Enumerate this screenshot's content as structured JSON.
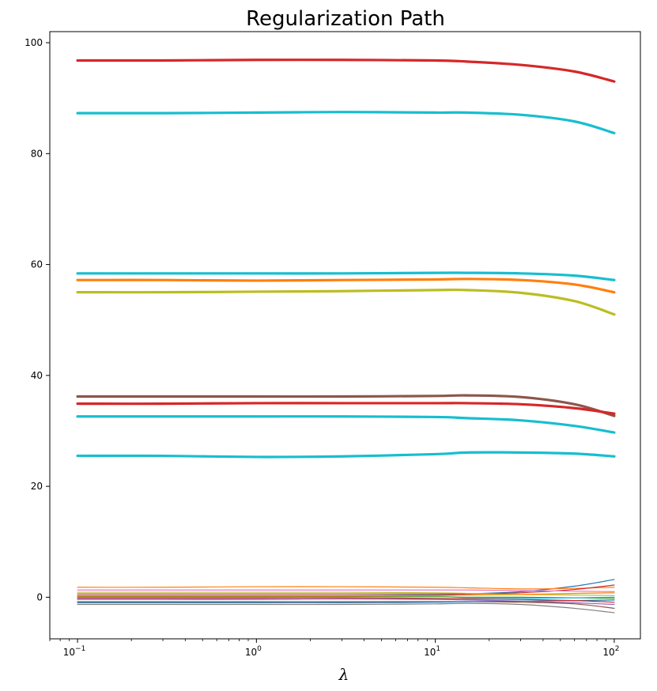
{
  "chart_data": {
    "type": "line",
    "title": "Regularization Path",
    "xlabel": "λ",
    "ylabel": "",
    "xscale": "log",
    "xlim": [
      0.07,
      140
    ],
    "ylim": [
      -7.5,
      102
    ],
    "grid": false,
    "legend": "none",
    "x_ticks": [
      {
        "value": 0.1,
        "base": "10",
        "exp": "−1"
      },
      {
        "value": 1,
        "base": "10",
        "exp": "0"
      },
      {
        "value": 10,
        "base": "10",
        "exp": "1"
      },
      {
        "value": 100,
        "base": "10",
        "exp": "2"
      }
    ],
    "y_ticks": [
      0,
      20,
      40,
      60,
      80,
      100
    ],
    "x": [
      0.1,
      0.3,
      1,
      3,
      10,
      15,
      30,
      60,
      100
    ],
    "series": [
      {
        "color": "#d62728",
        "width": 3.2,
        "values": [
          96.8,
          96.8,
          96.9,
          96.9,
          96.8,
          96.6,
          96.0,
          94.8,
          93.0
        ]
      },
      {
        "color": "#17becf",
        "width": 3.2,
        "values": [
          87.3,
          87.3,
          87.4,
          87.5,
          87.4,
          87.4,
          87.0,
          85.8,
          83.7
        ]
      },
      {
        "color": "#17becf",
        "width": 3.2,
        "values": [
          58.4,
          58.4,
          58.4,
          58.4,
          58.5,
          58.5,
          58.4,
          58.0,
          57.2
        ]
      },
      {
        "color": "#ff7f0e",
        "width": 3.2,
        "values": [
          57.2,
          57.2,
          57.1,
          57.2,
          57.3,
          57.4,
          57.2,
          56.4,
          55.0
        ]
      },
      {
        "color": "#bcbd22",
        "width": 3.2,
        "values": [
          55.0,
          55.0,
          55.1,
          55.2,
          55.4,
          55.4,
          54.9,
          53.4,
          51.0
        ]
      },
      {
        "color": "#8c564b",
        "width": 3.2,
        "values": [
          36.2,
          36.2,
          36.2,
          36.2,
          36.3,
          36.4,
          36.1,
          34.8,
          32.7
        ]
      },
      {
        "color": "#d62728",
        "width": 3.2,
        "values": [
          34.9,
          34.9,
          35.0,
          35.0,
          35.0,
          35.0,
          34.8,
          34.1,
          33.1
        ]
      },
      {
        "color": "#17becf",
        "width": 3.2,
        "values": [
          32.6,
          32.6,
          32.6,
          32.6,
          32.5,
          32.3,
          31.9,
          30.9,
          29.7
        ]
      },
      {
        "color": "#17becf",
        "width": 3.2,
        "values": [
          25.5,
          25.5,
          25.3,
          25.4,
          25.8,
          26.1,
          26.1,
          25.9,
          25.4
        ]
      },
      {
        "color": "#1f77b4",
        "width": 1.2,
        "values": [
          0.3,
          0.3,
          0.3,
          0.3,
          0.4,
          0.6,
          1.0,
          2.0,
          3.2
        ]
      },
      {
        "color": "#ff7f0e",
        "width": 1.2,
        "values": [
          1.8,
          1.8,
          1.9,
          1.9,
          1.8,
          1.7,
          1.5,
          1.6,
          1.8
        ]
      },
      {
        "color": "#d62728",
        "width": 1.2,
        "values": [
          0.6,
          0.6,
          0.6,
          0.6,
          0.6,
          0.6,
          0.8,
          1.4,
          2.2
        ]
      },
      {
        "color": "#e377c2",
        "width": 1.2,
        "values": [
          1.3,
          1.3,
          1.3,
          1.3,
          1.3,
          1.3,
          1.2,
          1.1,
          1.0
        ]
      },
      {
        "color": "#bcbd22",
        "width": 1.2,
        "values": [
          0.9,
          0.9,
          0.9,
          0.9,
          0.8,
          0.7,
          0.5,
          0.4,
          0.3
        ]
      },
      {
        "color": "#2ca02c",
        "width": 1.2,
        "values": [
          0.1,
          0.1,
          0.1,
          0.1,
          0.1,
          0.0,
          0.0,
          -0.1,
          -0.2
        ]
      },
      {
        "color": "#17becf",
        "width": 1.2,
        "values": [
          -0.4,
          -0.4,
          -0.4,
          -0.3,
          -0.3,
          -0.2,
          -0.2,
          -0.1,
          0.0
        ]
      },
      {
        "color": "#9467bd",
        "width": 1.2,
        "values": [
          -0.3,
          -0.3,
          -0.3,
          -0.3,
          -0.4,
          -0.5,
          -0.7,
          -1.0,
          -1.3
        ]
      },
      {
        "color": "#8c564b",
        "width": 1.2,
        "values": [
          -0.8,
          -0.8,
          -0.8,
          -0.8,
          -0.8,
          -0.8,
          -0.9,
          -1.2,
          -2.0
        ]
      },
      {
        "color": "#7f7f7f",
        "width": 1.2,
        "values": [
          -1.3,
          -1.3,
          -1.3,
          -1.3,
          -1.2,
          -1.1,
          -1.3,
          -2.0,
          -2.8
        ]
      },
      {
        "color": "#1f77b4",
        "width": 1.2,
        "values": [
          -1.0,
          -1.0,
          -1.0,
          -1.0,
          -0.9,
          -0.8,
          -0.7,
          -0.6,
          -0.5
        ]
      },
      {
        "color": "#d62728",
        "width": 1.2,
        "values": [
          -0.1,
          -0.1,
          -0.1,
          -0.1,
          -0.2,
          -0.3,
          -0.4,
          -0.6,
          -0.9
        ]
      },
      {
        "color": "#ff7f0e",
        "width": 1.2,
        "values": [
          0.2,
          0.2,
          0.2,
          0.2,
          0.3,
          0.4,
          0.5,
          0.7,
          0.8
        ]
      }
    ]
  }
}
